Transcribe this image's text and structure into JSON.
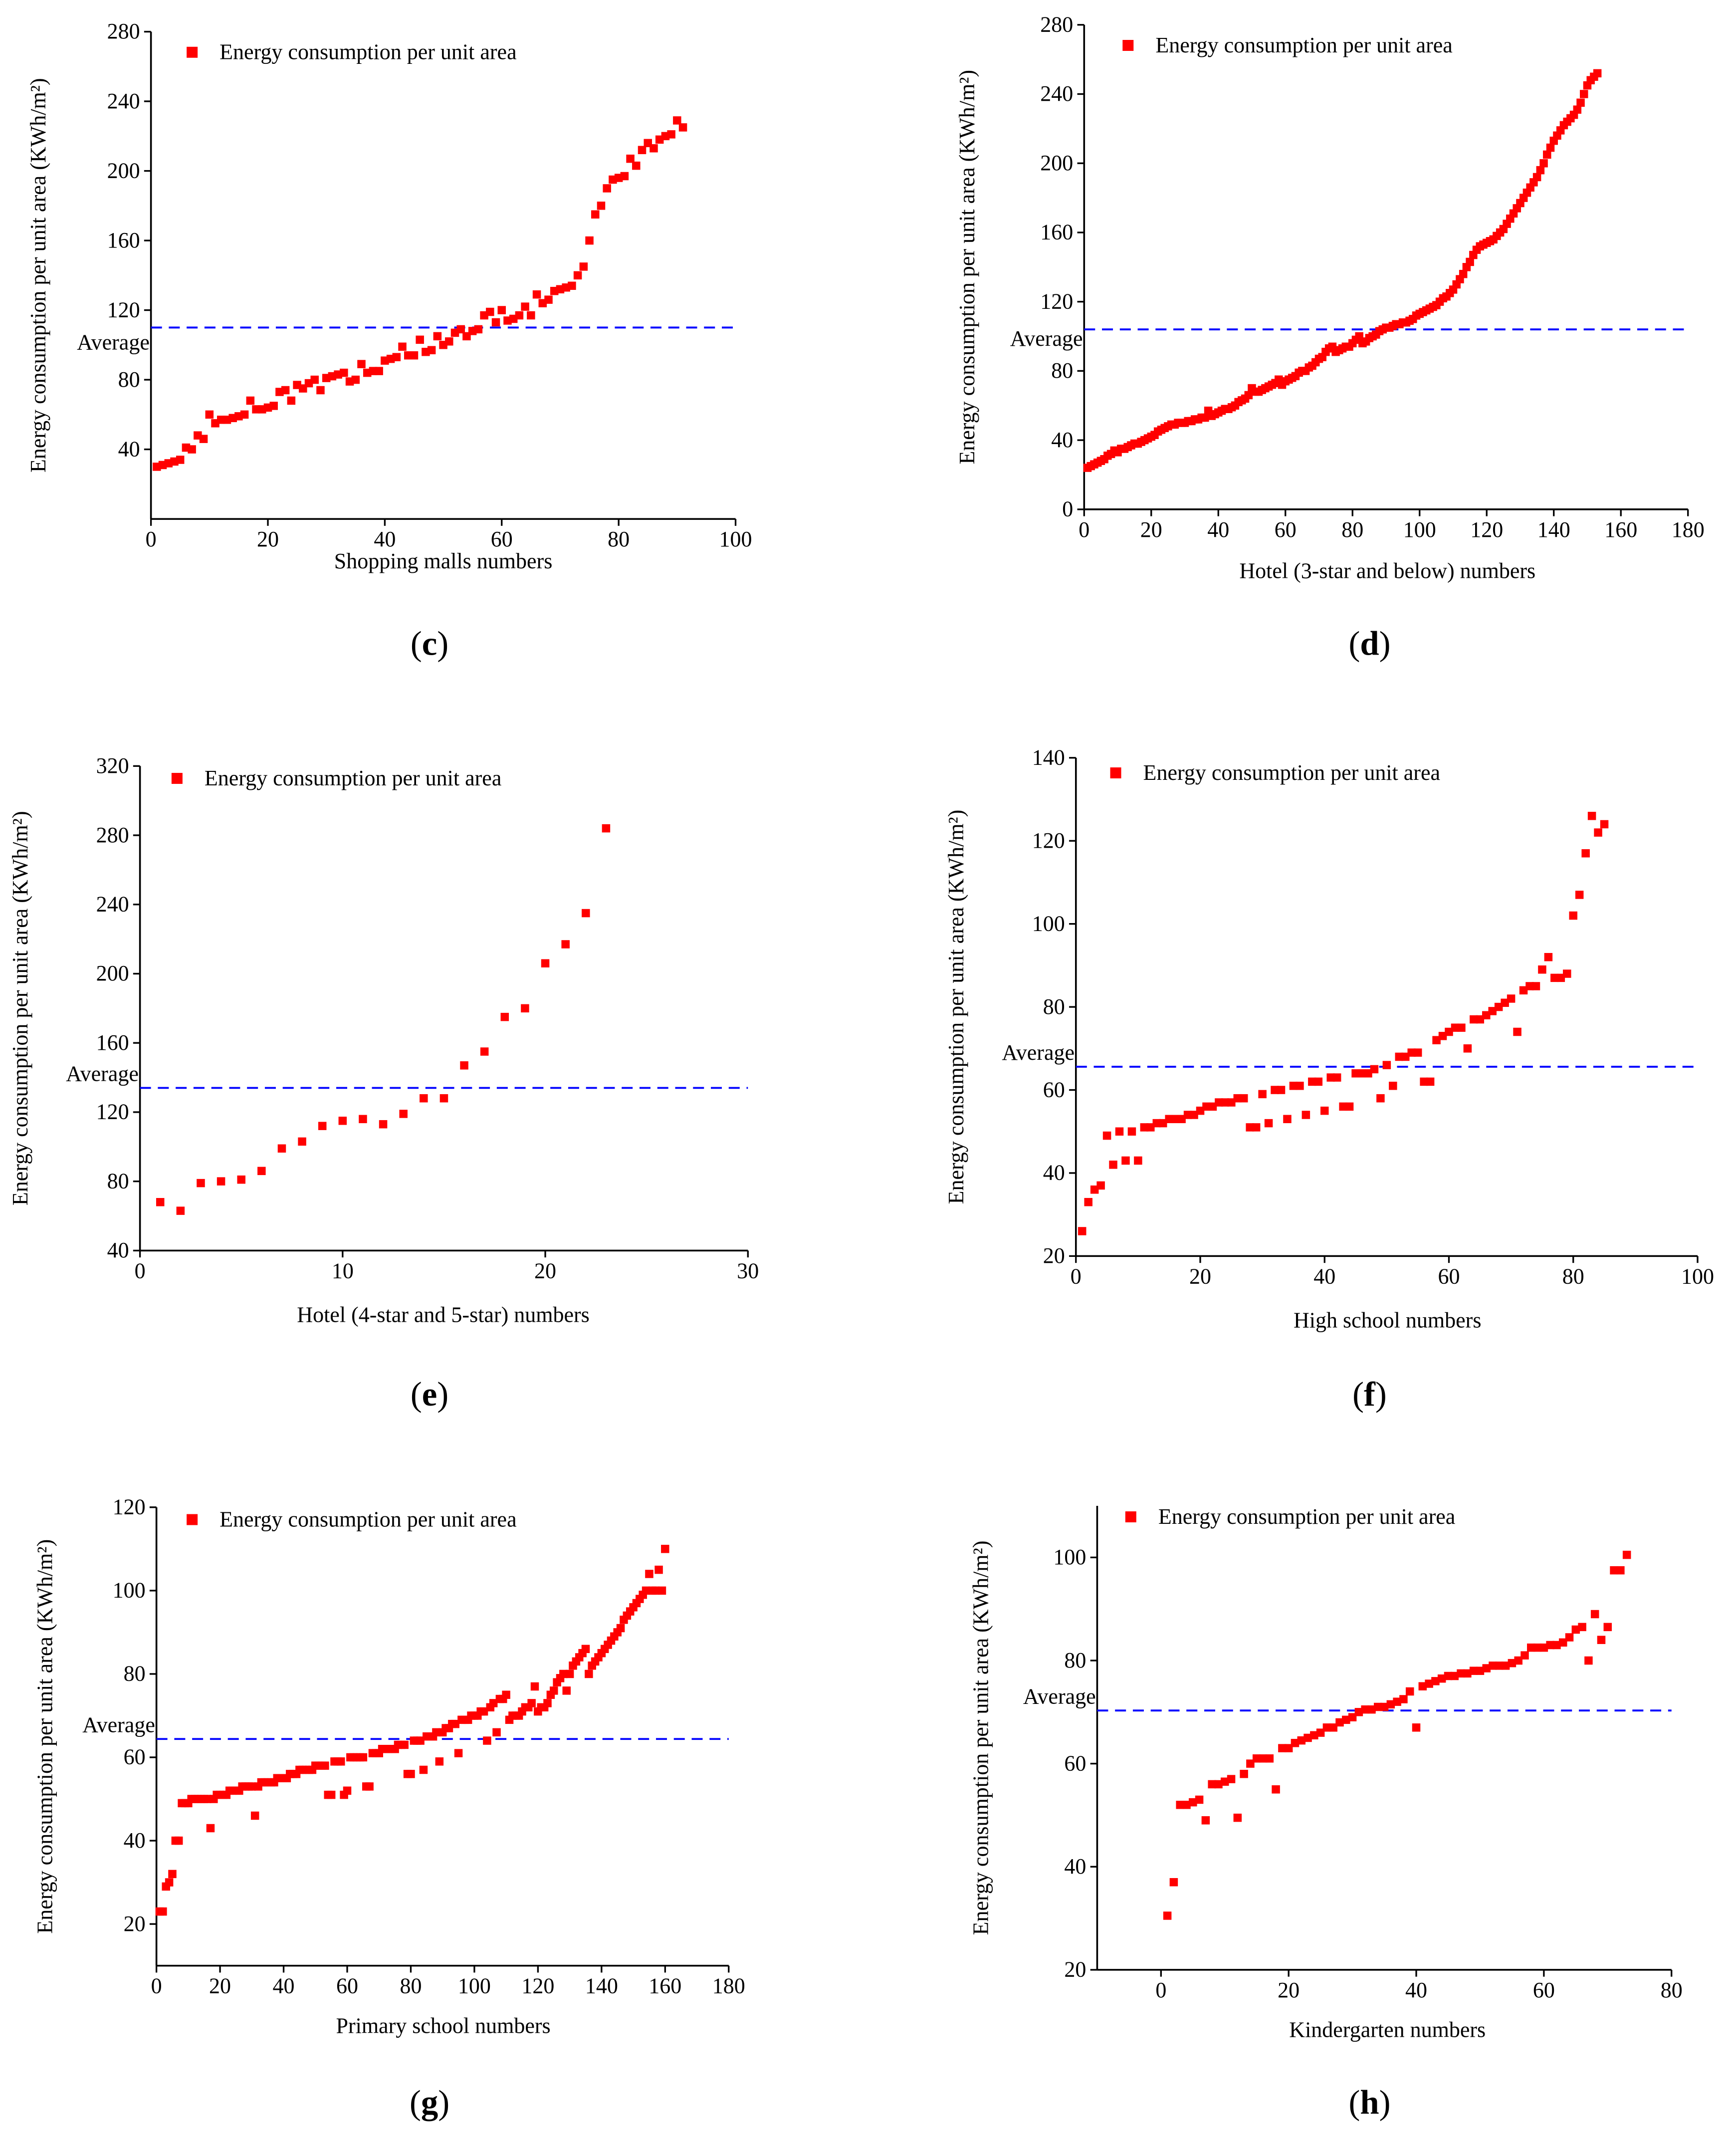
{
  "chart_data": [
    {
      "id": "c",
      "type": "scatter",
      "caption": "c",
      "xlabel": "Shopping malls numbers",
      "ylabel": "Energy consumption per unit area (KWh/m²)",
      "legend": "Energy consumption per unit area",
      "legend_position": "top-left",
      "average_label": "Average",
      "average": 110,
      "xlim": [
        0,
        100
      ],
      "ylim": [
        0,
        280
      ],
      "xticks": [
        0,
        20,
        40,
        60,
        80,
        100
      ],
      "yticks": [
        40,
        80,
        120,
        160,
        200,
        240,
        280
      ],
      "y": [
        30,
        31,
        32,
        33,
        34,
        41,
        40,
        48,
        46,
        60,
        55,
        57,
        57,
        58,
        59,
        60,
        68,
        63,
        63,
        64,
        65,
        73,
        74,
        68,
        77,
        75,
        78,
        80,
        74,
        81,
        82,
        83,
        84,
        79,
        80,
        89,
        84,
        85,
        85,
        91,
        92,
        93,
        99,
        94,
        94,
        103,
        96,
        97,
        105,
        100,
        102,
        107,
        109,
        105,
        108,
        109,
        117,
        119,
        113,
        120,
        114,
        115,
        117,
        122,
        117,
        129,
        124,
        126,
        131,
        132,
        133,
        134,
        140,
        145,
        160,
        175,
        180,
        190,
        195,
        196,
        197,
        207,
        203,
        212,
        216,
        213,
        218,
        220,
        221,
        229,
        225
      ]
    },
    {
      "id": "d",
      "type": "scatter",
      "caption": "d",
      "xlabel": "Hotel (3-star and below) numbers",
      "ylabel": "Energy consumption per unit area (KWh/m²)",
      "legend": "Energy consumption per unit area",
      "legend_position": "top-left",
      "average_label": "Average",
      "average": 104,
      "xlim": [
        0,
        180
      ],
      "ylim": [
        0,
        280
      ],
      "xticks": [
        0,
        20,
        40,
        60,
        80,
        100,
        120,
        140,
        160,
        180
      ],
      "yticks": [
        0,
        40,
        80,
        120,
        160,
        200,
        240,
        280
      ],
      "y": [
        24,
        25,
        26,
        27,
        28,
        29,
        31,
        32,
        34,
        33,
        35,
        35,
        36,
        37,
        38,
        38,
        39,
        40,
        41,
        42,
        43,
        45,
        46,
        47,
        48,
        49,
        49,
        50,
        50,
        50,
        51,
        51,
        52,
        52,
        53,
        53,
        57,
        54,
        55,
        56,
        57,
        58,
        58,
        59,
        60,
        62,
        63,
        64,
        66,
        70,
        68,
        68,
        69,
        70,
        71,
        72,
        73,
        75,
        72,
        74,
        75,
        76,
        77,
        79,
        80,
        80,
        82,
        83,
        85,
        87,
        88,
        91,
        93,
        94,
        91,
        92,
        93,
        94,
        94,
        96,
        98,
        100,
        96,
        97,
        99,
        100,
        101,
        103,
        104,
        105,
        105,
        106,
        107,
        107,
        108,
        108,
        109,
        110,
        112,
        113,
        114,
        115,
        116,
        117,
        118,
        120,
        122,
        123,
        125,
        127,
        130,
        133,
        136,
        140,
        143,
        147,
        150,
        152,
        153,
        154,
        155,
        156,
        158,
        160,
        162,
        165,
        168,
        171,
        174,
        177,
        180,
        183,
        186,
        189,
        192,
        196,
        200,
        205,
        209,
        213,
        216,
        219,
        222,
        224,
        226,
        228,
        231,
        235,
        240,
        245,
        248,
        250,
        252
      ]
    },
    {
      "id": "e",
      "type": "scatter",
      "caption": "e",
      "xlabel": "Hotel (4-star and 5-star) numbers",
      "ylabel": "Energy consumption per unit area (KWh/m²)",
      "legend": "Energy consumption per unit area",
      "legend_position": "top-left",
      "average_label": "Average",
      "average": 134,
      "xlim": [
        0,
        30
      ],
      "ylim": [
        40,
        320
      ],
      "xticks": [
        0,
        10,
        20,
        30
      ],
      "yticks": [
        40,
        80,
        120,
        160,
        200,
        240,
        280,
        320
      ],
      "y": [
        68,
        63,
        79,
        80,
        81,
        86,
        99,
        103,
        112,
        115,
        116,
        113,
        119,
        128,
        128,
        147,
        155,
        175,
        180,
        206,
        217,
        235,
        284
      ]
    },
    {
      "id": "f",
      "type": "scatter",
      "caption": "f",
      "xlabel": "High school numbers",
      "ylabel": "Energy consumption per unit area (KWh/m²)",
      "legend": "Energy consumption per unit area",
      "legend_position": "top-left",
      "average_label": "Average",
      "average": 65.6,
      "xlim": [
        0,
        100
      ],
      "ylim": [
        20,
        140
      ],
      "xticks": [
        0,
        20,
        40,
        60,
        80,
        100
      ],
      "yticks": [
        20,
        40,
        60,
        80,
        100,
        120,
        140
      ],
      "y": [
        26,
        33,
        36,
        37,
        49,
        42,
        50,
        43,
        50,
        43,
        51,
        51,
        52,
        52,
        53,
        53,
        53,
        54,
        54,
        55,
        56,
        56,
        57,
        57,
        57,
        58,
        58,
        51,
        51,
        59,
        52,
        60,
        60,
        53,
        61,
        61,
        54,
        62,
        62,
        55,
        63,
        63,
        56,
        56,
        64,
        64,
        64,
        65,
        58,
        66,
        61,
        68,
        68,
        69,
        69,
        62,
        62,
        72,
        73,
        74,
        75,
        75,
        70,
        77,
        77,
        78,
        79,
        80,
        81,
        82,
        74,
        84,
        85,
        85,
        89,
        92,
        87,
        87,
        88,
        102,
        107,
        117,
        126,
        122,
        124
      ]
    },
    {
      "id": "g",
      "type": "scatter",
      "caption": "g",
      "xlabel": "Primary school numbers",
      "ylabel": "Energy consumption per unit area (KWh/m²)",
      "legend": "Energy consumption per unit area",
      "legend_position": "top-left",
      "average_label": "Average",
      "average": 64.4,
      "xlim": [
        0,
        180
      ],
      "ylim": [
        10,
        120
      ],
      "xticks": [
        0,
        20,
        40,
        60,
        80,
        100,
        120,
        140,
        160,
        180
      ],
      "yticks": [
        20,
        40,
        60,
        80,
        100,
        120
      ],
      "y": [
        23,
        23,
        29,
        30,
        32,
        40,
        40,
        49,
        49,
        49,
        50,
        50,
        50,
        50,
        50,
        50,
        43,
        50,
        51,
        51,
        51,
        51,
        52,
        52,
        52,
        52,
        53,
        53,
        53,
        53,
        46,
        53,
        54,
        54,
        54,
        54,
        54,
        55,
        55,
        55,
        55,
        56,
        56,
        56,
        57,
        57,
        57,
        57,
        57,
        58,
        58,
        58,
        58,
        51,
        51,
        59,
        59,
        59,
        51,
        52,
        60,
        60,
        60,
        60,
        60,
        53,
        53,
        61,
        61,
        61,
        62,
        62,
        62,
        62,
        62,
        63,
        63,
        63,
        56,
        56,
        64,
        64,
        64,
        57,
        65,
        65,
        65,
        66,
        59,
        66,
        67,
        67,
        68,
        68,
        61,
        69,
        69,
        69,
        70,
        70,
        70,
        71,
        71,
        64,
        72,
        73,
        66,
        74,
        74,
        75,
        69,
        70,
        70,
        70,
        71,
        72,
        72,
        73,
        77,
        71,
        72,
        72,
        73,
        75,
        76,
        78,
        79,
        80,
        76,
        80,
        82,
        83,
        84,
        85,
        86,
        80,
        82,
        83,
        84,
        85,
        86,
        87,
        88,
        89,
        90,
        91,
        93,
        94,
        95,
        96,
        97,
        98,
        99,
        100,
        104,
        100,
        100,
        105,
        100,
        110
      ]
    },
    {
      "id": "h",
      "type": "scatter",
      "caption": "h",
      "xlabel": "Kindergarten numbers",
      "ylabel": "Energy consumption per unit area (KWh/m²)",
      "legend": "Energy consumption per unit area",
      "legend_position": "top-left",
      "average_label": "Average",
      "average": 70.3,
      "xlim": [
        -10,
        80
      ],
      "ylim": [
        20,
        110
      ],
      "xticks": [
        0,
        20,
        40,
        60,
        80
      ],
      "yticks": [
        20,
        40,
        60,
        80,
        100
      ],
      "y": [
        30.5,
        37,
        52,
        52,
        52.5,
        53,
        49,
        56,
        56,
        56.5,
        57,
        49.5,
        58,
        60,
        61,
        61,
        61,
        55,
        63,
        63,
        64,
        64.5,
        65,
        65.5,
        66,
        67,
        67,
        68,
        68.5,
        69,
        70,
        70.5,
        70.5,
        71,
        71,
        71.5,
        72,
        72.5,
        74,
        67,
        75,
        75.5,
        76,
        76.5,
        77,
        77,
        77.5,
        77.5,
        78,
        78,
        78.5,
        79,
        79,
        79,
        79.5,
        80,
        81,
        82.5,
        82.5,
        82.5,
        83,
        83,
        83.5,
        84.5,
        86,
        86.5,
        80,
        89,
        84,
        86.5,
        97.5,
        97.5,
        100.5
      ]
    }
  ],
  "colors": {
    "marker": "#ff0000",
    "average_line": "#0000ff",
    "axis": "#000000"
  }
}
